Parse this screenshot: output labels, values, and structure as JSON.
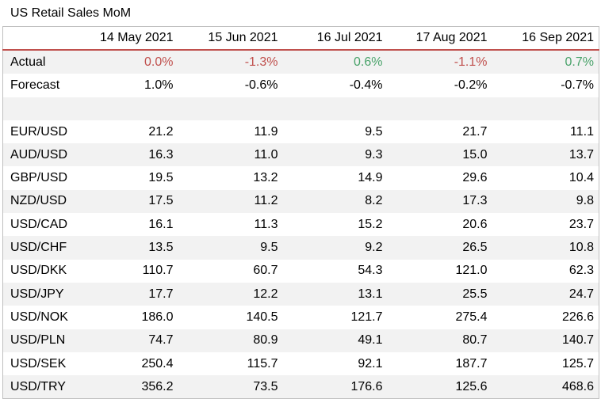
{
  "title": "US Retail Sales MoM",
  "colors": {
    "negative": "#c0504d",
    "positive": "#4aa36b",
    "header_rule": "#c0504d",
    "stripe": "#f2f2f2"
  },
  "columns": [
    "14 May 2021",
    "15 Jun 2021",
    "16 Jul 2021",
    "17 Aug 2021",
    "16 Sep 2021"
  ],
  "actual": {
    "label": "Actual",
    "values": [
      "0.0%",
      "-1.3%",
      "0.6%",
      "-1.1%",
      "0.7%"
    ],
    "tones": [
      "neg",
      "neg",
      "pos",
      "neg",
      "pos"
    ]
  },
  "forecast": {
    "label": "Forecast",
    "values": [
      "1.0%",
      "-0.6%",
      "-0.4%",
      "-0.2%",
      "-0.7%"
    ]
  },
  "pairs": [
    {
      "label": "EUR/USD",
      "values": [
        "21.2",
        "11.9",
        "9.5",
        "21.7",
        "11.1"
      ]
    },
    {
      "label": "AUD/USD",
      "values": [
        "16.3",
        "11.0",
        "9.3",
        "15.0",
        "13.7"
      ]
    },
    {
      "label": "GBP/USD",
      "values": [
        "19.5",
        "13.2",
        "14.9",
        "29.6",
        "10.4"
      ]
    },
    {
      "label": "NZD/USD",
      "values": [
        "17.5",
        "11.2",
        "8.2",
        "17.3",
        "9.8"
      ]
    },
    {
      "label": "USD/CAD",
      "values": [
        "16.1",
        "11.3",
        "15.2",
        "20.6",
        "23.7"
      ]
    },
    {
      "label": "USD/CHF",
      "values": [
        "13.5",
        "9.5",
        "9.2",
        "26.5",
        "10.8"
      ]
    },
    {
      "label": "USD/DKK",
      "values": [
        "110.7",
        "60.7",
        "54.3",
        "121.0",
        "62.3"
      ]
    },
    {
      "label": "USD/JPY",
      "values": [
        "17.7",
        "12.2",
        "13.1",
        "25.5",
        "24.7"
      ]
    },
    {
      "label": "USD/NOK",
      "values": [
        "186.0",
        "140.5",
        "121.7",
        "275.4",
        "226.6"
      ]
    },
    {
      "label": "USD/PLN",
      "values": [
        "74.7",
        "80.9",
        "49.1",
        "80.7",
        "140.7"
      ]
    },
    {
      "label": "USD/SEK",
      "values": [
        "250.4",
        "115.7",
        "92.1",
        "187.7",
        "125.7"
      ]
    },
    {
      "label": "USD/TRY",
      "values": [
        "356.2",
        "73.5",
        "176.6",
        "125.6",
        "468.6"
      ]
    }
  ]
}
